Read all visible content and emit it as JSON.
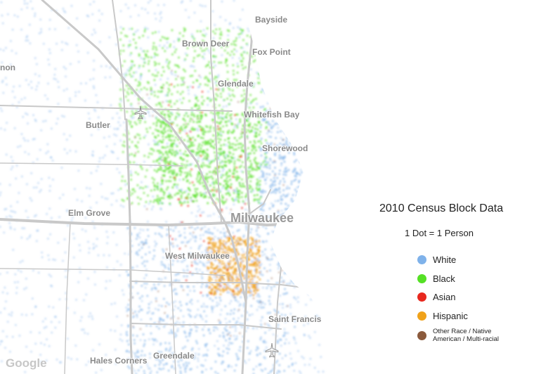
{
  "places": {
    "bayside": "Bayside",
    "brown_deer": "Brown Deer",
    "fox_point": "Fox Point",
    "glendale": "Glendale",
    "whitefish_bay": "Whitefish Bay",
    "butler": "Butler",
    "shorewood": "Shorewood",
    "elm_grove": "Elm Grove",
    "milwaukee": "Milwaukee",
    "west_milwaukee": "West Milwaukee",
    "saint_francis": "Saint Francis",
    "hales_corners": "Hales Corners",
    "greendale": "Greendale",
    "partial_left": "non"
  },
  "legend": {
    "title": "2010 Census Block Data",
    "subtitle": "1 Dot = 1 Person",
    "items": [
      {
        "label": "White",
        "color": "#7fb2ea"
      },
      {
        "label": "Black",
        "color": "#55e025"
      },
      {
        "label": "Asian",
        "color": "#e8281e"
      },
      {
        "label": "Hispanic",
        "color": "#f0a21a"
      },
      {
        "label": "Other Race / Native American / Multi-racial",
        "color": "#8b5a3c"
      }
    ]
  },
  "attribution": "Google",
  "icons": [
    "airport-icon",
    "airport-icon"
  ],
  "colors": {
    "water": "#ffffff",
    "land": "#ffffff",
    "roads": "#cfcfcf"
  }
}
